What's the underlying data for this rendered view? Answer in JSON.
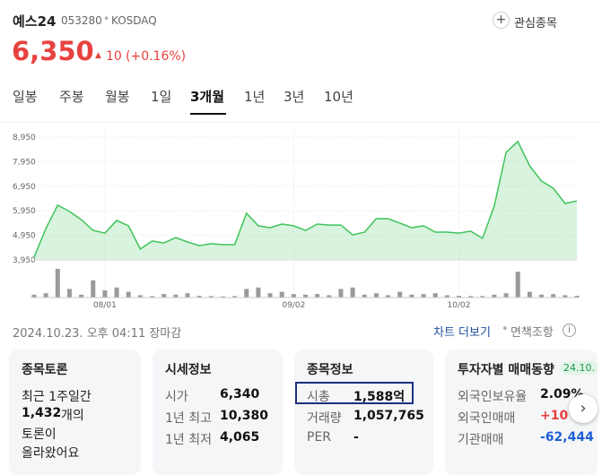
{
  "header": {
    "name": "예스24",
    "code": "053280",
    "market": "KOSDAQ",
    "watch_button": "관심종목",
    "price": "6,350",
    "change": "10",
    "change_pct": "(+0.16%)"
  },
  "tabs": [
    "일봉",
    "주봉",
    "월봉",
    "1일",
    "3개월",
    "1년",
    "3년",
    "10년"
  ],
  "chart_data": {
    "type": "line",
    "categories": [
      null,
      null,
      null,
      null,
      null,
      null,
      "08/01",
      null,
      null,
      null,
      null,
      null,
      null,
      null,
      null,
      null,
      null,
      null,
      null,
      null,
      null,
      null,
      "09/02",
      null,
      null,
      null,
      null,
      null,
      null,
      null,
      null,
      null,
      null,
      null,
      null,
      null,
      "10/02",
      null,
      null,
      null,
      null,
      null,
      null,
      null,
      null,
      null,
      null
    ],
    "values": [
      4060,
      5230,
      6180,
      5920,
      5590,
      5150,
      5040,
      5560,
      5340,
      4390,
      4720,
      4640,
      4860,
      4680,
      4530,
      4610,
      4570,
      4570,
      5850,
      5340,
      5260,
      5410,
      5340,
      5150,
      5410,
      5370,
      5370,
      4970,
      5080,
      5630,
      5630,
      5450,
      5260,
      5340,
      5080,
      5080,
      5040,
      5120,
      4830,
      6140,
      8330,
      8770,
      7780,
      7160,
      6870,
      6250,
      6350
    ],
    "color": "#3ec45a",
    "volume": [
      10,
      15,
      100,
      30,
      10,
      60,
      25,
      35,
      20,
      8,
      5,
      12,
      10,
      15,
      6,
      5,
      4,
      5,
      30,
      35,
      15,
      20,
      12,
      10,
      12,
      8,
      30,
      35,
      10,
      15,
      8,
      20,
      10,
      12,
      15,
      8,
      6,
      5,
      5,
      10,
      15,
      90,
      20,
      10,
      12,
      8,
      6
    ],
    "volume_color": "#9a9a9a",
    "ylim": [
      3950,
      8950
    ],
    "yticks": [
      {
        "value": 8950,
        "label": "8,950"
      },
      {
        "value": 7950,
        "label": "7,950"
      },
      {
        "value": 6950,
        "label": "6,950"
      },
      {
        "value": 5950,
        "label": "5,950"
      },
      {
        "value": 4950,
        "label": "4,950"
      },
      {
        "value": 3950,
        "label": "3,950"
      }
    ],
    "grid": true
  },
  "footer": {
    "timestamp": "2024.10.23. 오후 04:11 장마감",
    "chart_more": "차트 더보기",
    "disclaimer": "면책조항"
  },
  "cards": [
    {
      "title": "종목토론",
      "intro": "최근 1주일간",
      "count": "1,432",
      "count_suffix": "개의",
      "lines": [
        "토론이",
        "올라왔어요"
      ]
    },
    {
      "title": "시세정보",
      "rows": [
        {
          "label": "시가",
          "value": "6,340"
        },
        {
          "label": "1년 최고",
          "value": "10,380"
        },
        {
          "label": "1년 최저",
          "value": "4,065"
        }
      ]
    },
    {
      "title": "종목정보",
      "rows": [
        {
          "label": "시총",
          "value": "1,588억"
        },
        {
          "label": "거래량",
          "value": "1,057,765"
        },
        {
          "label": "PER",
          "value": "-"
        }
      ]
    },
    {
      "title": "투자자별 매매동향",
      "badge": "24.10.",
      "rows": [
        {
          "label": "외국인보유율",
          "value": "2.09%"
        },
        {
          "label": "외국인매매",
          "value": "+10"
        },
        {
          "label": "기관매매",
          "value": "-62,444"
        }
      ]
    }
  ]
}
